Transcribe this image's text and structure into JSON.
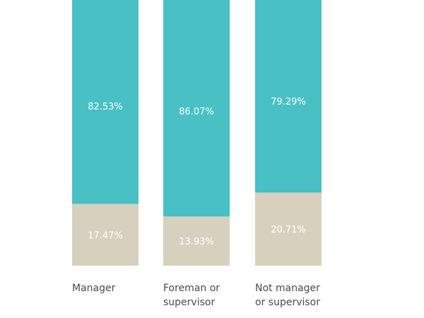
{
  "chart_data": {
    "type": "bar",
    "stacked": true,
    "unit": "%",
    "categories": [
      "Manager",
      "Foreman or\nsupervisor",
      "Not manager\nor supervisor"
    ],
    "series": [
      {
        "values": [
          17.47,
          13.93,
          20.71
        ],
        "labels": [
          "17.47%",
          "13.93%",
          "20.71%"
        ],
        "color": "#d8d0bf"
      },
      {
        "values": [
          82.53,
          86.07,
          79.29
        ],
        "labels": [
          "82.53%",
          "86.07%",
          "79.29%"
        ],
        "color": "#48c0c4"
      }
    ],
    "ylim": [
      0,
      100
    ],
    "grid": false,
    "legend": "none"
  }
}
